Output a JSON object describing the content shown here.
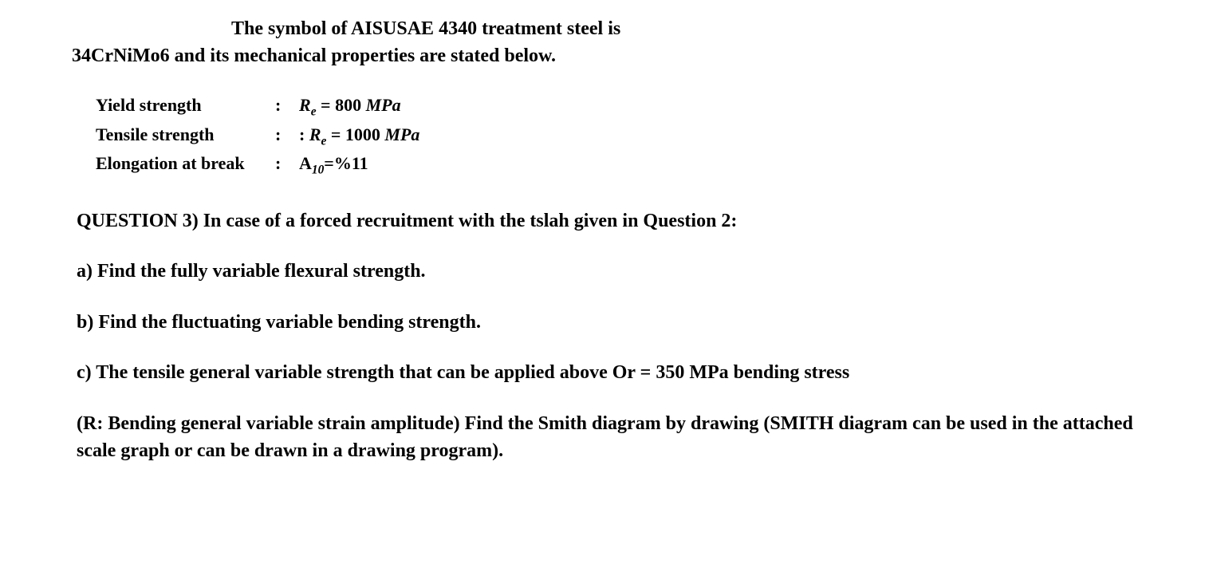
{
  "intro": {
    "line1": "The symbol of AISUSAE 4340 treatment steel is",
    "line2": "34CrNiMo6 and its mechanical properties are stated below."
  },
  "properties": {
    "yield": {
      "label": "Yield strength",
      "value_prefix": "R",
      "value_sub": "e",
      "value_text": " = 800 ",
      "value_unit": "MPa"
    },
    "tensile": {
      "label": "Tensile strength",
      "value_lead": ": ",
      "value_prefix": "R",
      "value_sub": "e",
      "value_text": " = 1000 ",
      "value_unit": "MPa"
    },
    "elongation": {
      "label": "Elongation at break",
      "value_prefix": "A",
      "value_sub": "10",
      "value_text": "=%11"
    }
  },
  "question": {
    "header": "QUESTION 3) In case of a forced recruitment with the tslah given in Question 2:",
    "part_a": "a) Find the fully variable flexural strength.",
    "part_b": "b) Find the fluctuating variable bending strength.",
    "part_c": "c) The tensile general variable strength that can be applied above Or = 350 MPa bending stress",
    "note": "(R: Bending general variable strain amplitude) Find the Smith diagram by drawing (SMITH diagram can be used in the attached scale graph or can be drawn in a drawing program)."
  },
  "styling": {
    "background_color": "#ffffff",
    "text_color": "#000000",
    "font_family": "Times New Roman",
    "base_fontsize_pt": 18,
    "font_weight": "bold"
  }
}
